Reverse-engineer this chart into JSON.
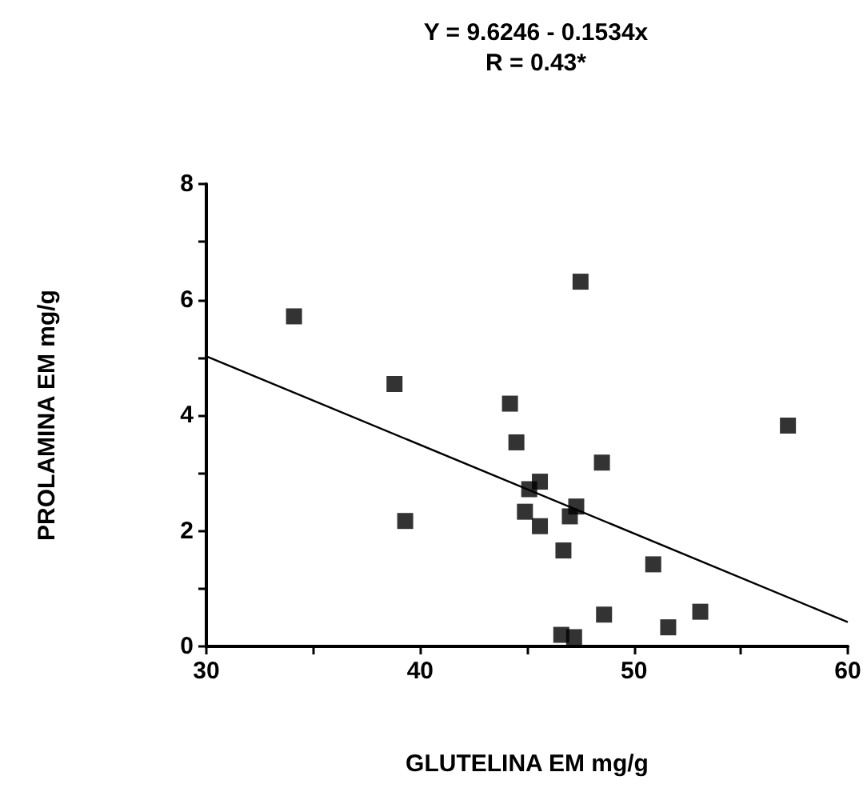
{
  "chart_data": {
    "type": "scatter",
    "title": "Y = 9.6246 - 0.1534x",
    "subtitle": "R = 0.43*",
    "xlabel": "GLUTELINA EM mg/g",
    "ylabel": "PROLAMINA EM mg/g",
    "xlim": [
      30,
      60
    ],
    "ylim": [
      0,
      8
    ],
    "xticks": [
      30,
      {
        "value": 35,
        "label": null
      },
      40,
      {
        "value": 45,
        "label": null
      },
      50,
      {
        "value": 55,
        "label": null
      },
      60
    ],
    "yticks": [
      0,
      {
        "value": 1,
        "label": null
      },
      2,
      {
        "value": 3,
        "label": null
      },
      4,
      {
        "value": 5,
        "label": null
      },
      6,
      {
        "value": 7,
        "label": null
      },
      8
    ],
    "marker": "square",
    "grid": false,
    "series": [
      {
        "color": "#000000",
        "x": [
          34.1,
          38.8,
          39.3,
          44.2,
          44.5,
          45.6,
          45.1,
          44.9,
          45.6,
          47.3,
          47.0,
          46.7,
          47.5,
          48.5,
          57.2,
          50.9,
          48.6,
          53.1,
          51.6,
          46.6,
          47.2
        ],
        "values": [
          5.71,
          4.54,
          2.17,
          4.2,
          3.53,
          2.85,
          2.72,
          2.33,
          2.08,
          2.42,
          2.25,
          1.66,
          6.31,
          3.18,
          3.82,
          1.42,
          0.55,
          0.6,
          0.33,
          0.2,
          0.16
        ]
      },
      {
        "type": "line",
        "color": "#000000",
        "marker": "none",
        "x": [
          30,
          60
        ],
        "values": [
          5.02,
          0.42
        ]
      }
    ]
  }
}
